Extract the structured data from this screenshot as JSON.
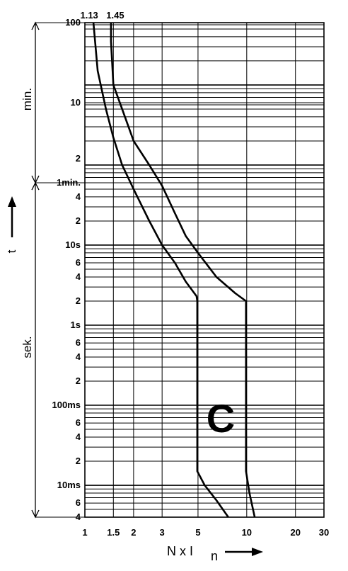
{
  "chart_data": {
    "type": "line",
    "title": "",
    "x_axis": {
      "label_main": "N x I",
      "label_sub": "n",
      "scale": "log",
      "range": [
        1,
        30
      ],
      "ticks": [
        1,
        1.5,
        2,
        3,
        5,
        10,
        20,
        30
      ],
      "tick_labels": [
        "1",
        "1.5",
        "2",
        "3",
        "5",
        "10",
        "20",
        "30"
      ]
    },
    "y_axis": {
      "label": "t",
      "scale": "log",
      "unit": "seconds",
      "range_seconds": [
        0.004,
        6000
      ],
      "sections": [
        {
          "label": "min.",
          "from_seconds": 60,
          "to_seconds": 6000
        },
        {
          "label": "sek.",
          "from_seconds": 0.004,
          "to_seconds": 60
        }
      ],
      "tick_labels": [
        {
          "seconds": 6000,
          "text": "100"
        },
        {
          "seconds": 600,
          "text": "10"
        },
        {
          "seconds": 120,
          "text": "2"
        },
        {
          "seconds": 60,
          "text": "1min."
        },
        {
          "seconds": 40,
          "text": "4"
        },
        {
          "seconds": 20,
          "text": "2"
        },
        {
          "seconds": 10,
          "text": "10s"
        },
        {
          "seconds": 6,
          "text": "6"
        },
        {
          "seconds": 4,
          "text": "4"
        },
        {
          "seconds": 2,
          "text": "2"
        },
        {
          "seconds": 1,
          "text": "1s"
        },
        {
          "seconds": 0.6,
          "text": "6"
        },
        {
          "seconds": 0.4,
          "text": "4"
        },
        {
          "seconds": 0.2,
          "text": "2"
        },
        {
          "seconds": 0.1,
          "text": "100ms"
        },
        {
          "seconds": 0.06,
          "text": "6"
        },
        {
          "seconds": 0.04,
          "text": "4"
        },
        {
          "seconds": 0.02,
          "text": "2"
        },
        {
          "seconds": 0.01,
          "text": "10ms"
        },
        {
          "seconds": 0.006,
          "text": "6"
        },
        {
          "seconds": 0.004,
          "text": "4"
        }
      ]
    },
    "curve_labels": [
      "1.13",
      "1.45"
    ],
    "characteristic_label": "C",
    "series": [
      {
        "name": "",
        "points": [
          [
            1.13,
            6000
          ],
          [
            1.2,
            1500
          ],
          [
            1.35,
            500
          ],
          [
            1.5,
            220
          ],
          [
            1.7,
            100
          ],
          [
            2.0,
            50
          ],
          [
            2.5,
            20
          ],
          [
            3.0,
            10
          ],
          [
            3.6,
            6
          ],
          [
            4.2,
            3.5
          ],
          [
            4.9,
            2.3
          ],
          [
            4.95,
            2.0
          ],
          [
            4.95,
            0.3
          ],
          [
            4.95,
            0.03
          ],
          [
            4.95,
            0.015
          ],
          [
            5.5,
            0.01
          ],
          [
            6.5,
            0.0065
          ],
          [
            7.7,
            0.004
          ]
        ]
      },
      {
        "name": "",
        "points": [
          [
            1.45,
            6000
          ],
          [
            1.45,
            3500
          ],
          [
            1.5,
            1000
          ],
          [
            1.7,
            500
          ],
          [
            2.0,
            200
          ],
          [
            2.5,
            100
          ],
          [
            3.0,
            55
          ],
          [
            3.6,
            25
          ],
          [
            4.2,
            13
          ],
          [
            5.0,
            8
          ],
          [
            6.5,
            4
          ],
          [
            8.5,
            2.5
          ],
          [
            9.9,
            2.0
          ],
          [
            9.9,
            0.3
          ],
          [
            9.9,
            0.03
          ],
          [
            9.9,
            0.015
          ],
          [
            10.4,
            0.008
          ],
          [
            11.2,
            0.004
          ]
        ]
      }
    ],
    "grid": true
  }
}
